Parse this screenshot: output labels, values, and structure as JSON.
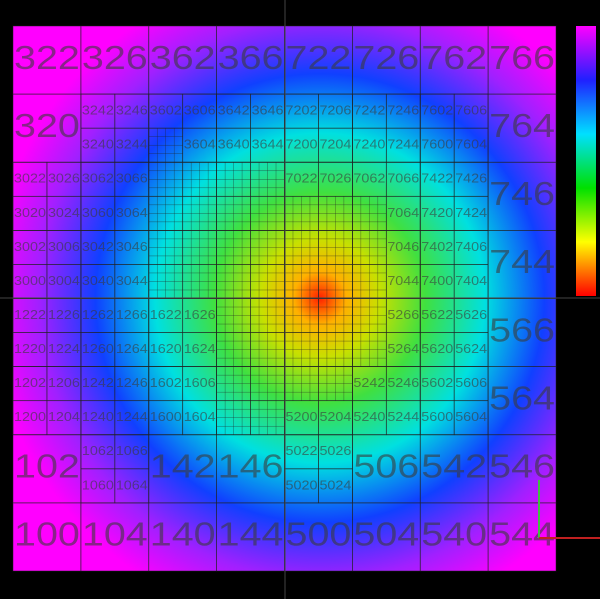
{
  "grid": {
    "rows": [
      [
        "322",
        "326",
        "362",
        "366",
        "722",
        "726",
        "762",
        "766"
      ],
      [
        "320",
        [
          [
            "3242",
            "3246"
          ],
          [
            "3240",
            "3244"
          ]
        ],
        [
          [
            "3602",
            "3606"
          ],
          [
            null,
            "3604"
          ]
        ],
        [
          [
            "3642",
            "3646"
          ],
          [
            "3640",
            "3644"
          ]
        ],
        [
          [
            "7202",
            "7206"
          ],
          [
            "7200",
            "7204"
          ]
        ],
        [
          [
            "7242",
            "7246"
          ],
          [
            "7240",
            "7244"
          ]
        ],
        [
          [
            "7602",
            "7606"
          ],
          [
            "7600",
            "7604"
          ]
        ],
        "764"
      ],
      [
        [
          [
            "3022",
            "3026"
          ],
          [
            "3020",
            "3024"
          ]
        ],
        [
          [
            "3062",
            "3066"
          ],
          [
            "3060",
            "3064"
          ]
        ],
        [
          [
            null,
            null
          ],
          [
            null,
            null
          ]
        ],
        [
          [
            null,
            null
          ],
          [
            null,
            null
          ]
        ],
        [
          [
            "7022",
            "7026"
          ],
          [
            null,
            null
          ]
        ],
        [
          [
            "7062",
            "7066"
          ],
          [
            null,
            "7064"
          ]
        ],
        [
          [
            "7422",
            "7426"
          ],
          [
            "7420",
            "7424"
          ]
        ],
        "746"
      ],
      [
        [
          [
            "3002",
            "3006"
          ],
          [
            "3000",
            "3004"
          ]
        ],
        [
          [
            "3042",
            "3046"
          ],
          [
            "3040",
            "3044"
          ]
        ],
        [
          [
            null,
            null
          ],
          [
            null,
            null
          ]
        ],
        [
          [
            null,
            null
          ],
          [
            null,
            null
          ]
        ],
        [
          [
            null,
            null
          ],
          [
            null,
            null
          ]
        ],
        [
          [
            null,
            "7046"
          ],
          [
            null,
            "7044"
          ]
        ],
        [
          [
            "7402",
            "7406"
          ],
          [
            "7400",
            "7404"
          ]
        ],
        "744"
      ],
      [
        [
          [
            "1222",
            "1226"
          ],
          [
            "1220",
            "1224"
          ]
        ],
        [
          [
            "1262",
            "1266"
          ],
          [
            "1260",
            "1264"
          ]
        ],
        [
          [
            "1622",
            "1626"
          ],
          [
            "1620",
            "1624"
          ]
        ],
        [
          [
            null,
            null
          ],
          [
            null,
            null
          ]
        ],
        [
          [
            null,
            null
          ],
          [
            null,
            null
          ]
        ],
        [
          [
            null,
            "5266"
          ],
          [
            null,
            "5264"
          ]
        ],
        [
          [
            "5622",
            "5626"
          ],
          [
            "5620",
            "5624"
          ]
        ],
        "566"
      ],
      [
        [
          [
            "1202",
            "1206"
          ],
          [
            "1200",
            "1204"
          ]
        ],
        [
          [
            "1242",
            "1246"
          ],
          [
            "1240",
            "1244"
          ]
        ],
        [
          [
            "1602",
            "1606"
          ],
          [
            "1600",
            "1604"
          ]
        ],
        [
          [
            null,
            null
          ],
          [
            null,
            null
          ]
        ],
        [
          [
            null,
            null
          ],
          [
            "5200",
            "5204"
          ]
        ],
        [
          [
            "5242",
            "5246"
          ],
          [
            "5240",
            "5244"
          ]
        ],
        [
          [
            "5602",
            "5606"
          ],
          [
            "5600",
            "5604"
          ]
        ],
        "564"
      ],
      [
        "102",
        [
          [
            "1062",
            "1066"
          ],
          [
            "1060",
            "1064"
          ]
        ],
        "142",
        "146",
        [
          [
            "5022",
            "5026"
          ],
          [
            "5020",
            "5024"
          ]
        ],
        "506",
        "542",
        "546"
      ],
      [
        "100",
        "104",
        "140",
        "144",
        "500",
        "504",
        "540",
        "544"
      ]
    ]
  }
}
